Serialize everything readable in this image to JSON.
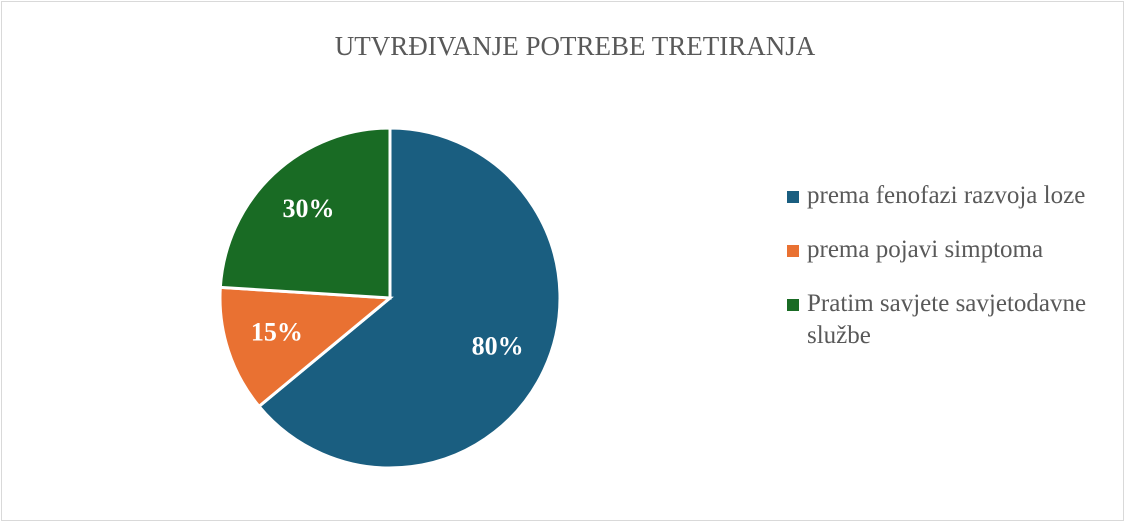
{
  "chart_data": {
    "type": "pie",
    "title": "UTVRĐIVANJE POTREBE TRETIRANJA",
    "categories": [
      "prema fenofazi razvoja loze",
      "prema pojavi simptoma",
      "Pratim savjete savjetodavne službe"
    ],
    "values": [
      80,
      15,
      30
    ],
    "value_labels": [
      "80%",
      "15%",
      "30%"
    ],
    "colors": [
      "#1a5e80",
      "#e97132",
      "#196b24"
    ],
    "legend": "right"
  }
}
